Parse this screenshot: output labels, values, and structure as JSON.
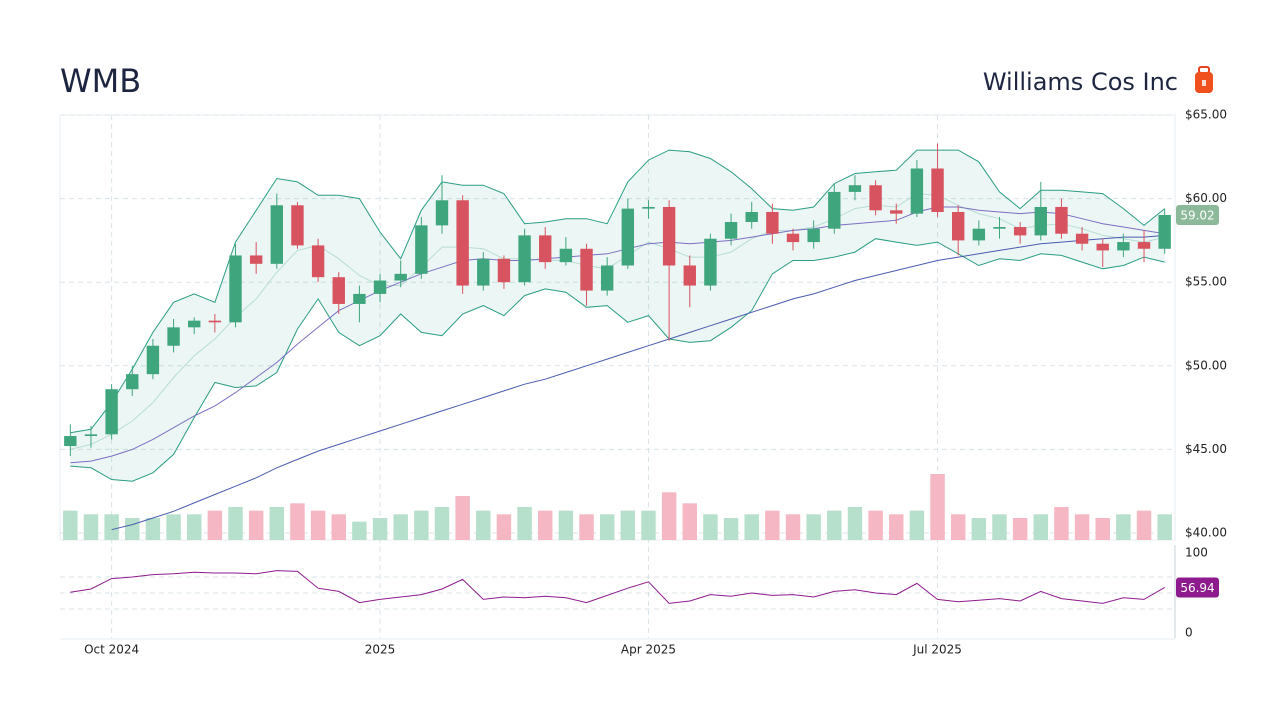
{
  "chart_data": {
    "type": "candlestick",
    "title": "WMB",
    "subtitle": "Williams Cos Inc",
    "categories": [
      null,
      null,
      "Oct 2024",
      null,
      null,
      null,
      null,
      null,
      null,
      null,
      null,
      null,
      null,
      null,
      null,
      "2025",
      null,
      null,
      null,
      null,
      null,
      null,
      null,
      null,
      null,
      null,
      null,
      null,
      "Apr 2025",
      null,
      null,
      null,
      null,
      null,
      null,
      null,
      null,
      null,
      null,
      null,
      null,
      null,
      "Jul 2025",
      null,
      null,
      null,
      null,
      null,
      null,
      null,
      null,
      null,
      null,
      null
    ],
    "open": [
      45.2,
      45.8,
      45.9,
      48.6,
      49.5,
      51.2,
      52.3,
      52.7,
      52.6,
      56.6,
      56.1,
      59.6,
      57.2,
      55.3,
      53.7,
      54.3,
      55.1,
      55.5,
      58.4,
      59.9,
      54.8,
      56.4,
      55.0,
      57.8,
      56.2,
      57.0,
      54.5,
      56.0,
      59.4,
      59.5,
      56.0,
      54.8,
      57.6,
      58.6,
      59.2,
      57.9,
      57.4,
      58.2,
      60.4,
      60.8,
      59.3,
      59.1,
      61.8,
      59.2,
      57.5,
      58.2,
      58.3,
      57.8,
      59.5,
      57.9,
      57.3,
      56.9,
      57.4,
      57.0
    ],
    "high": [
      46.5,
      46.4,
      48.9,
      50.0,
      51.6,
      52.8,
      52.9,
      53.1,
      57.3,
      57.4,
      60.3,
      59.8,
      57.6,
      55.6,
      54.8,
      55.5,
      56.3,
      58.9,
      61.4,
      60.2,
      56.8,
      56.6,
      58.2,
      58.3,
      57.7,
      57.3,
      56.5,
      60.0,
      59.9,
      59.9,
      56.6,
      57.9,
      59.1,
      59.8,
      59.7,
      58.2,
      58.7,
      60.9,
      61.4,
      61.1,
      59.7,
      62.3,
      63.3,
      59.6,
      58.7,
      58.9,
      58.6,
      61.0,
      60.0,
      58.3,
      57.6,
      57.9,
      58.1,
      59.4
    ],
    "low": [
      44.6,
      45.1,
      45.6,
      48.2,
      49.2,
      50.8,
      51.9,
      52.0,
      52.3,
      55.5,
      55.8,
      57.0,
      55.0,
      53.1,
      52.6,
      53.8,
      54.7,
      55.2,
      57.9,
      54.3,
      54.5,
      54.6,
      54.8,
      55.8,
      56.0,
      53.6,
      54.2,
      55.8,
      58.8,
      51.5,
      53.5,
      54.5,
      57.2,
      58.2,
      57.3,
      56.9,
      57.0,
      57.9,
      59.9,
      59.0,
      58.5,
      58.9,
      58.9,
      56.6,
      57.2,
      57.6,
      57.3,
      57.5,
      57.6,
      56.9,
      55.9,
      56.5,
      56.2,
      56.7
    ],
    "close": [
      45.8,
      45.9,
      48.6,
      49.5,
      51.2,
      52.3,
      52.7,
      52.6,
      56.6,
      56.1,
      59.6,
      57.2,
      55.3,
      53.7,
      54.3,
      55.1,
      55.5,
      58.4,
      59.9,
      54.8,
      56.4,
      55.0,
      57.8,
      56.2,
      57.0,
      54.5,
      56.0,
      59.4,
      59.5,
      56.0,
      54.8,
      57.6,
      58.6,
      59.2,
      57.9,
      57.4,
      58.2,
      60.4,
      60.8,
      59.3,
      59.1,
      61.8,
      59.2,
      57.5,
      58.2,
      58.3,
      57.8,
      59.5,
      57.9,
      57.3,
      56.9,
      57.4,
      57.0,
      59.02
    ],
    "up_color": "#3fa57d",
    "down_color": "#d6535f",
    "tag_color": "#8cb99a",
    "ylim": [
      40,
      65
    ],
    "yticks": [
      {
        "value": 40,
        "label": "$40.00"
      },
      {
        "value": 45,
        "label": "$45.00"
      },
      {
        "value": 50,
        "label": "$50.00"
      },
      {
        "value": 55,
        "label": "$55.00"
      },
      {
        "value": 60,
        "label": "$60.00"
      },
      {
        "value": 65,
        "label": "$65.00"
      }
    ],
    "grid": true,
    "bands": {
      "color": "#2a9d84",
      "upper": [
        46.0,
        46.2,
        47.8,
        49.8,
        52.0,
        53.8,
        54.3,
        53.8,
        57.4,
        59.3,
        61.2,
        61.0,
        60.2,
        60.2,
        60.0,
        58.0,
        56.4,
        59.3,
        61.0,
        60.8,
        60.8,
        60.3,
        58.5,
        58.6,
        58.8,
        58.8,
        58.5,
        61.0,
        62.3,
        62.9,
        62.8,
        62.4,
        61.6,
        60.6,
        59.4,
        59.3,
        59.5,
        60.9,
        61.5,
        61.6,
        61.7,
        62.9,
        62.9,
        62.9,
        62.2,
        60.4,
        59.4,
        60.5,
        60.5,
        60.4,
        60.3,
        59.4,
        58.4,
        59.4
      ],
      "lower": [
        44.0,
        43.9,
        43.2,
        43.1,
        43.6,
        44.7,
        46.9,
        49.0,
        48.7,
        48.8,
        49.6,
        52.2,
        54.0,
        52.0,
        51.2,
        51.8,
        53.1,
        52.0,
        51.8,
        53.1,
        53.6,
        53.0,
        54.2,
        54.6,
        54.4,
        53.5,
        53.6,
        52.6,
        53.0,
        51.6,
        51.4,
        51.5,
        52.3,
        53.3,
        55.5,
        56.3,
        56.3,
        56.5,
        56.8,
        57.6,
        57.4,
        57.2,
        57.4,
        56.7,
        56.0,
        56.4,
        56.3,
        56.7,
        56.6,
        56.2,
        55.8,
        56.0,
        56.5,
        56.2
      ]
    },
    "series": [
      {
        "color": "#b7ddd3",
        "values": [
          45.0,
          45.3,
          45.9,
          46.7,
          47.8,
          49.3,
          50.6,
          51.6,
          52.9,
          54.0,
          55.6,
          56.9,
          57.2,
          56.4,
          55.4,
          54.8,
          54.8,
          55.9,
          57.1,
          57.1,
          57.0,
          56.4,
          56.4,
          56.3,
          56.3,
          56.0,
          55.8,
          56.6,
          57.4,
          57.0,
          56.5,
          56.5,
          56.8,
          57.6,
          58.1,
          58.1,
          58.3,
          58.8,
          59.4,
          59.6,
          59.5,
          60.3,
          60.2,
          59.6,
          59.1,
          58.8,
          58.2,
          58.4,
          58.5,
          58.2,
          57.8,
          57.6,
          57.4,
          57.7
        ]
      },
      {
        "color": "#7d6fc4",
        "values": [
          44.2,
          44.3,
          44.6,
          45.0,
          45.6,
          46.3,
          47.0,
          47.6,
          48.4,
          49.3,
          50.2,
          51.3,
          52.3,
          53.3,
          53.9,
          54.5,
          55.0,
          55.5,
          55.9,
          56.3,
          56.4,
          56.3,
          56.3,
          56.4,
          56.5,
          56.6,
          56.7,
          57.0,
          57.3,
          57.4,
          57.3,
          57.4,
          57.5,
          57.7,
          57.9,
          58.1,
          58.2,
          58.4,
          58.5,
          58.6,
          58.7,
          59.2,
          59.5,
          59.5,
          59.3,
          59.2,
          59.1,
          59.2,
          59.1,
          58.8,
          58.5,
          58.3,
          58.1,
          57.9
        ]
      },
      {
        "color": "#4a5bb0",
        "values": [
          null,
          null,
          40.2,
          40.5,
          40.9,
          41.3,
          41.8,
          42.3,
          42.8,
          43.3,
          43.9,
          44.4,
          44.9,
          45.3,
          45.7,
          46.1,
          46.5,
          46.9,
          47.3,
          47.7,
          48.1,
          48.5,
          48.9,
          49.2,
          49.6,
          50.0,
          50.4,
          50.8,
          51.2,
          51.6,
          52.0,
          52.4,
          52.8,
          53.2,
          53.6,
          54.0,
          54.3,
          54.7,
          55.1,
          55.4,
          55.7,
          56.0,
          56.3,
          56.5,
          56.7,
          56.9,
          57.1,
          57.3,
          57.4,
          57.5,
          57.6,
          57.7,
          57.7,
          57.8
        ]
      }
    ],
    "volume": {
      "up_color": "#b6e0cb",
      "down_color": "#f5b7c3",
      "values": [
        8,
        7,
        7,
        6,
        6,
        7,
        7,
        8,
        9,
        8,
        9,
        10,
        8,
        7,
        5,
        6,
        7,
        8,
        9,
        12,
        8,
        7,
        9,
        8,
        8,
        7,
        7,
        8,
        8,
        13,
        10,
        7,
        6,
        7,
        8,
        7,
        7,
        8,
        9,
        8,
        7,
        8,
        18,
        7,
        6,
        7,
        6,
        7,
        9,
        7,
        6,
        7,
        8,
        7
      ]
    },
    "rsi": {
      "color": "#8e1b8e",
      "values": [
        51,
        55,
        68,
        70,
        73,
        74,
        76,
        75,
        75,
        74,
        78,
        77,
        56,
        52,
        38,
        42,
        45,
        48,
        55,
        67,
        42,
        45,
        44,
        46,
        44,
        38,
        47,
        56,
        64,
        37,
        40,
        48,
        46,
        50,
        47,
        48,
        45,
        52,
        54,
        50,
        48,
        62,
        42,
        39,
        41,
        43,
        40,
        52,
        43,
        40,
        37,
        44,
        42,
        56.94
      ],
      "ylim": [
        0,
        100
      ],
      "yticks": [
        0,
        100
      ],
      "guides": [
        30,
        50,
        70
      ]
    }
  }
}
